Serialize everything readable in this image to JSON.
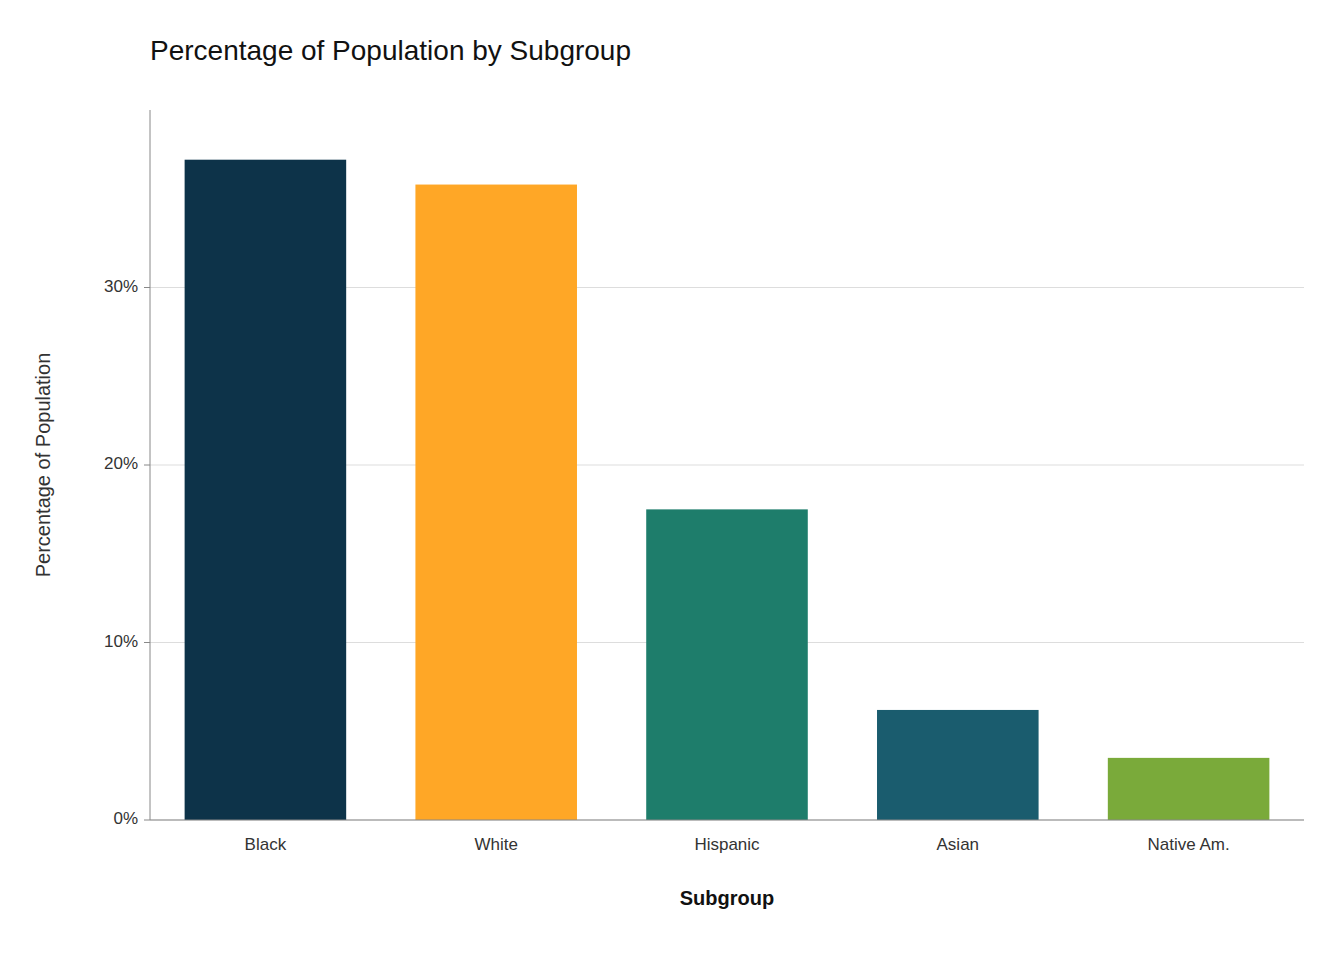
{
  "chart_data": {
    "type": "bar",
    "title": "Percentage of Population by Subgroup",
    "xlabel": "Subgroup",
    "ylabel": "Percentage of Population",
    "categories": [
      "Black",
      "White",
      "Hispanic",
      "Asian",
      "Native Am."
    ],
    "values": [
      37.2,
      35.8,
      17.5,
      6.2,
      3.5
    ],
    "colors": [
      "#0d3349",
      "#FFA726",
      "#1e7d6b",
      "#1a5c6e",
      "#7aaa3a"
    ],
    "ylim": [
      0,
      40
    ],
    "yticks": [
      {
        "value": 0,
        "label": "0%"
      },
      {
        "value": 10,
        "label": "10%"
      },
      {
        "value": 20,
        "label": "20%"
      },
      {
        "value": 30,
        "label": "30%"
      }
    ],
    "grid": true
  }
}
